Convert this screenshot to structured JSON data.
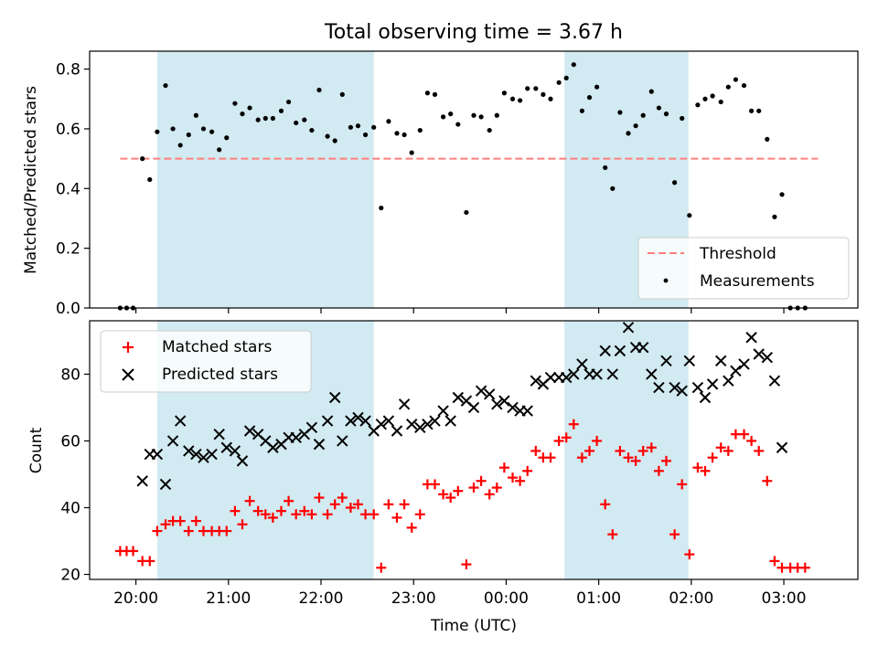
{
  "figure": {
    "title": "Total observing time = 3.67 h",
    "xlabel": "Time (UTC)",
    "x_ticks": [
      "20:00",
      "21:00",
      "22:00",
      "23:00",
      "00:00",
      "01:00",
      "02:00",
      "03:00"
    ],
    "x_tick_hours": [
      20,
      21,
      22,
      23,
      24,
      25,
      26,
      27
    ],
    "x_range_hours": [
      19.5,
      27.8
    ],
    "shaded_intervals_hours": [
      [
        20.23,
        22.57
      ],
      [
        24.63,
        25.97
      ]
    ],
    "shade_color": "#add8e6",
    "colors": {
      "measurements": "#000000",
      "threshold": "#ff7f7f",
      "matched": "#ff0000",
      "predicted": "#000000"
    }
  },
  "chart_data": [
    {
      "type": "scatter",
      "ylabel": "Matched/Predicted stars",
      "ylim": [
        0,
        0.86
      ],
      "y_ticks": [
        "0.0",
        "0.2",
        "0.4",
        "0.6",
        "0.8"
      ],
      "y_tick_values": [
        0,
        0.2,
        0.4,
        0.6,
        0.8
      ],
      "legend": {
        "placement": "lower-right",
        "entries": [
          "Threshold",
          "Measurements"
        ]
      },
      "threshold": {
        "name": "Threshold",
        "value": 0.5,
        "x_range": [
          19.83,
          27.37
        ]
      },
      "series": [
        {
          "name": "Measurements",
          "x": [
            19.83,
            19.9,
            19.97,
            20.07,
            20.15,
            20.23,
            20.32,
            20.4,
            20.48,
            20.57,
            20.65,
            20.73,
            20.82,
            20.9,
            20.98,
            21.07,
            21.15,
            21.23,
            21.32,
            21.4,
            21.48,
            21.57,
            21.65,
            21.73,
            21.82,
            21.9,
            21.98,
            22.07,
            22.15,
            22.23,
            22.32,
            22.4,
            22.48,
            22.57,
            22.65,
            22.73,
            22.82,
            22.9,
            22.98,
            23.07,
            23.15,
            23.23,
            23.32,
            23.4,
            23.48,
            23.57,
            23.65,
            23.73,
            23.82,
            23.9,
            23.98,
            24.07,
            24.15,
            24.23,
            24.32,
            24.4,
            24.48,
            24.57,
            24.65,
            24.73,
            24.82,
            24.9,
            24.98,
            25.07,
            25.15,
            25.23,
            25.32,
            25.4,
            25.48,
            25.57,
            25.65,
            25.73,
            25.82,
            25.9,
            25.98,
            26.07,
            26.15,
            26.23,
            26.32,
            26.4,
            26.48,
            26.57,
            26.65,
            26.73,
            26.82,
            26.9,
            26.98,
            27.07,
            27.15,
            27.23
          ],
          "y": [
            0.0,
            0.0,
            0.0,
            0.5,
            0.43,
            0.59,
            0.745,
            0.6,
            0.545,
            0.58,
            0.645,
            0.6,
            0.59,
            0.53,
            0.57,
            0.685,
            0.65,
            0.67,
            0.63,
            0.635,
            0.635,
            0.66,
            0.69,
            0.62,
            0.63,
            0.595,
            0.73,
            0.575,
            0.56,
            0.715,
            0.605,
            0.61,
            0.58,
            0.605,
            0.335,
            0.625,
            0.585,
            0.58,
            0.52,
            0.595,
            0.72,
            0.715,
            0.64,
            0.65,
            0.615,
            0.32,
            0.645,
            0.64,
            0.595,
            0.645,
            0.72,
            0.7,
            0.695,
            0.735,
            0.735,
            0.715,
            0.7,
            0.755,
            0.77,
            0.815,
            0.66,
            0.705,
            0.74,
            0.47,
            0.4,
            0.655,
            0.585,
            0.61,
            0.645,
            0.725,
            0.67,
            0.65,
            0.42,
            0.635,
            0.31,
            0.68,
            0.7,
            0.71,
            0.69,
            0.74,
            0.765,
            0.745,
            0.66,
            0.66,
            0.565,
            0.305,
            0.38,
            0.0,
            0.0,
            0.0
          ]
        }
      ]
    },
    {
      "type": "scatter",
      "ylabel": "Count",
      "ylim": [
        18.5,
        96
      ],
      "y_ticks": [
        "20",
        "40",
        "60",
        "80"
      ],
      "y_tick_values": [
        20,
        40,
        60,
        80
      ],
      "legend": {
        "placement": "upper-left",
        "entries": [
          "Matched stars",
          "Predicted stars"
        ]
      },
      "series": [
        {
          "name": "Matched stars",
          "x": [
            19.83,
            19.9,
            19.97,
            20.07,
            20.15,
            20.23,
            20.32,
            20.4,
            20.48,
            20.57,
            20.65,
            20.73,
            20.82,
            20.9,
            20.98,
            21.07,
            21.15,
            21.23,
            21.32,
            21.4,
            21.48,
            21.57,
            21.65,
            21.73,
            21.82,
            21.9,
            21.98,
            22.07,
            22.15,
            22.23,
            22.32,
            22.4,
            22.48,
            22.57,
            22.65,
            22.73,
            22.82,
            22.9,
            22.98,
            23.07,
            23.15,
            23.23,
            23.32,
            23.4,
            23.48,
            23.57,
            23.65,
            23.73,
            23.82,
            23.9,
            23.98,
            24.07,
            24.15,
            24.23,
            24.32,
            24.4,
            24.48,
            24.57,
            24.65,
            24.73,
            24.82,
            24.9,
            24.98,
            25.07,
            25.15,
            25.23,
            25.32,
            25.4,
            25.48,
            25.57,
            25.65,
            25.73,
            25.82,
            25.9,
            25.98,
            26.07,
            26.15,
            26.23,
            26.32,
            26.4,
            26.48,
            26.57,
            26.65,
            26.73,
            26.82,
            26.9,
            26.98,
            27.07,
            27.15,
            27.23
          ],
          "y": [
            27,
            27,
            27,
            24,
            24,
            33,
            35,
            36,
            36,
            33,
            36,
            33,
            33,
            33,
            33,
            39,
            35,
            42,
            39,
            38,
            37,
            39,
            42,
            38,
            39,
            38,
            43,
            38,
            41,
            43,
            40,
            41,
            38,
            38,
            22,
            41,
            37,
            41,
            34,
            38,
            47,
            47,
            44,
            43,
            45,
            23,
            46,
            48,
            44,
            46,
            52,
            49,
            48,
            51,
            57,
            55,
            55,
            60,
            61,
            65,
            55,
            57,
            60,
            41,
            32,
            57,
            55,
            54,
            57,
            58,
            51,
            54,
            32,
            47,
            26,
            52,
            51,
            55,
            58,
            57,
            62,
            62,
            60,
            57,
            48,
            24,
            22,
            22,
            22,
            22
          ]
        },
        {
          "name": "Predicted stars",
          "x": [
            20.07,
            20.15,
            20.23,
            20.32,
            20.4,
            20.48,
            20.57,
            20.65,
            20.73,
            20.82,
            20.9,
            20.98,
            21.07,
            21.15,
            21.23,
            21.32,
            21.4,
            21.48,
            21.57,
            21.65,
            21.73,
            21.82,
            21.9,
            21.98,
            22.07,
            22.15,
            22.23,
            22.32,
            22.4,
            22.48,
            22.57,
            22.65,
            22.73,
            22.82,
            22.9,
            22.98,
            23.07,
            23.15,
            23.23,
            23.32,
            23.4,
            23.48,
            23.57,
            23.65,
            23.73,
            23.82,
            23.9,
            23.98,
            24.07,
            24.15,
            24.23,
            24.32,
            24.4,
            24.48,
            24.57,
            24.65,
            24.73,
            24.82,
            24.9,
            24.98,
            25.07,
            25.15,
            25.23,
            25.32,
            25.4,
            25.48,
            25.57,
            25.65,
            25.73,
            25.82,
            25.9,
            25.98,
            26.07,
            26.15,
            26.23,
            26.32,
            26.4,
            26.48,
            26.57,
            26.65,
            26.73,
            26.82,
            26.9,
            26.98
          ],
          "y": [
            48,
            56,
            56,
            47,
            60,
            66,
            57,
            56,
            55,
            56,
            62,
            58,
            57,
            54,
            63,
            62,
            60,
            58,
            59,
            61,
            61,
            62,
            64,
            59,
            66,
            73,
            60,
            66,
            67,
            66,
            63,
            65,
            66,
            63,
            71,
            65,
            64,
            65,
            66,
            69,
            66,
            73,
            72,
            70,
            75,
            74,
            71,
            72,
            70,
            69,
            69,
            78,
            77,
            79,
            79,
            79,
            80,
            83,
            80,
            80,
            87,
            80,
            87,
            94,
            88,
            88,
            80,
            76,
            84,
            76,
            75,
            84,
            76,
            73,
            77,
            84,
            78,
            81,
            83,
            91,
            86,
            85,
            78,
            58
          ]
        }
      ]
    }
  ]
}
